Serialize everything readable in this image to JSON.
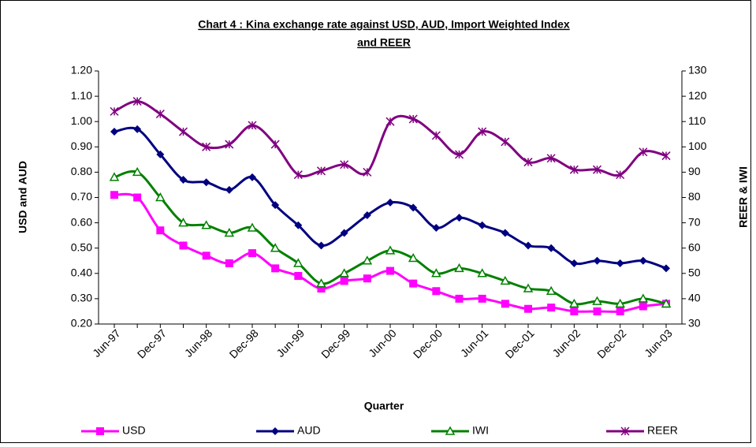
{
  "chart_data": {
    "type": "line",
    "title": [
      "Chart 4 : Kina exchange rate against USD, AUD, Import Weighted Index",
      "and REER"
    ],
    "x_label": "Quarter",
    "y_label": "USD and AUD",
    "y2_label": "REER & IWI",
    "categories": [
      "Jun-97",
      null,
      "Dec-97",
      null,
      "Jun-98",
      null,
      "Dec-98",
      null,
      "Jun-99",
      null,
      "Dec-99",
      null,
      "Jun-00",
      null,
      "Dec-00",
      null,
      "Jun-01",
      null,
      "Dec-01",
      null,
      "Jun-02",
      null,
      "Dec-02",
      null,
      "Jun-03"
    ],
    "series": [
      {
        "name": "USD",
        "color": "#ff00ff",
        "marker": "square",
        "values": [
          0.71,
          0.7,
          0.57,
          0.51,
          0.47,
          0.44,
          0.48,
          0.42,
          0.39,
          0.34,
          0.37,
          0.38,
          0.41,
          0.36,
          0.33,
          0.3,
          0.3,
          0.28,
          0.26,
          0.265,
          0.25,
          0.25,
          0.25,
          0.27,
          0.28
        ]
      },
      {
        "name": "AUD",
        "color": "#000080",
        "marker": "diamond",
        "values": [
          0.96,
          0.97,
          0.87,
          0.77,
          0.76,
          0.73,
          0.78,
          0.67,
          0.59,
          0.51,
          0.56,
          0.63,
          0.68,
          0.66,
          0.58,
          0.62,
          0.59,
          0.56,
          0.51,
          0.5,
          0.44,
          0.45,
          0.44,
          0.45,
          0.42
        ]
      },
      {
        "name": "IWI",
        "color": "#008000",
        "marker": "triangle",
        "values": [
          0.78,
          0.8,
          0.7,
          0.6,
          0.59,
          0.56,
          0.58,
          0.5,
          0.44,
          0.36,
          0.4,
          0.45,
          0.49,
          0.46,
          0.4,
          0.42,
          0.4,
          0.37,
          0.34,
          0.33,
          0.28,
          0.29,
          0.28,
          0.3,
          0.28
        ]
      },
      {
        "name": "REER",
        "color": "#800080",
        "marker": "star",
        "axis": "y2",
        "values": [
          114,
          118,
          113,
          106,
          100,
          101,
          108.5,
          101,
          89,
          90.5,
          93,
          90,
          110,
          111,
          104.5,
          97,
          106,
          102,
          94,
          95.5,
          91,
          91,
          89,
          98,
          96.5
        ]
      }
    ],
    "ylim": [
      0.2,
      1.2
    ],
    "yticks": [
      {
        "value": 0.2,
        "label": "0.20"
      },
      {
        "value": 0.3,
        "label": "0.30"
      },
      {
        "value": 0.4,
        "label": "0.40"
      },
      {
        "value": 0.5,
        "label": "0.50"
      },
      {
        "value": 0.6,
        "label": "0.60"
      },
      {
        "value": 0.7,
        "label": "0.70"
      },
      {
        "value": 0.8,
        "label": "0.80"
      },
      {
        "value": 0.9,
        "label": "0.90"
      },
      {
        "value": 1.0,
        "label": "1.00"
      },
      {
        "value": 1.1,
        "label": "1.10"
      },
      {
        "value": 1.2,
        "label": "1.20"
      }
    ],
    "y2lim": [
      30,
      130
    ],
    "y2ticks": [
      30,
      40,
      50,
      60,
      70,
      80,
      90,
      100,
      110,
      120,
      130
    ],
    "legend": "bottom",
    "grid": false
  }
}
